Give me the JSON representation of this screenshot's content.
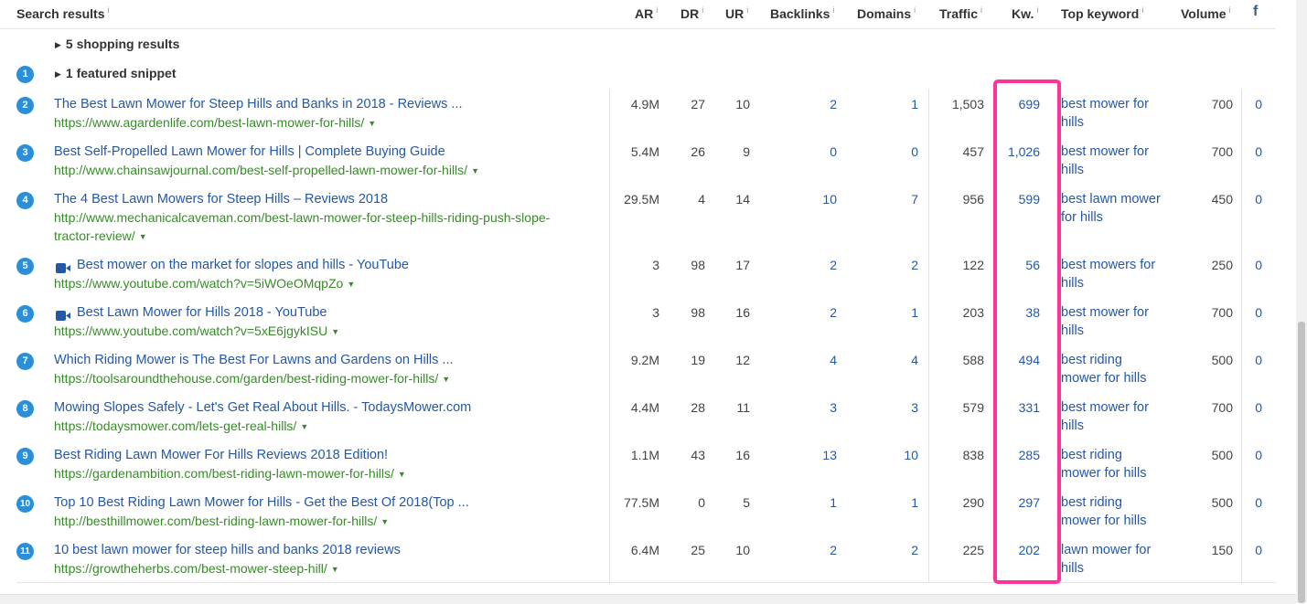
{
  "header": {
    "search_results": "Search results",
    "ar": "AR",
    "dr": "DR",
    "ur": "UR",
    "backlinks": "Backlinks",
    "domains": "Domains",
    "traffic": "Traffic",
    "kw": "Kw.",
    "top_keyword": "Top keyword",
    "volume": "Volume",
    "info": "i",
    "facebook": "f"
  },
  "shopping": {
    "label": "5 shopping results"
  },
  "featured": {
    "rank": "1",
    "label": "1 featured snippet"
  },
  "rows": [
    {
      "rank": "2",
      "title": "The Best Lawn Mower for Steep Hills and Banks in 2018 - Reviews ...",
      "url": "https://www.agardenlife.com/best-lawn-mower-for-hills/",
      "ar": "4.9M",
      "dr": "27",
      "ur": "10",
      "backlinks": "2",
      "domains": "1",
      "traffic": "1,503",
      "kw": "699",
      "keyword": "best mower for hills",
      "volume": "700",
      "fb": "0",
      "video": false
    },
    {
      "rank": "3",
      "title": "Best Self-Propelled Lawn Mower for Hills | Complete Buying Guide",
      "url": "http://www.chainsawjournal.com/best-self-propelled-lawn-mower-for-hills/",
      "ar": "5.4M",
      "dr": "26",
      "ur": "9",
      "backlinks": "0",
      "domains": "0",
      "traffic": "457",
      "kw": "1,026",
      "keyword": "best mower for hills",
      "volume": "700",
      "fb": "0",
      "video": false
    },
    {
      "rank": "4",
      "title": "The 4 Best Lawn Mowers for Steep Hills – Reviews 2018",
      "url": "http://www.mechanicalcaveman.com/best-lawn-mower-for-steep-hills-riding-push-slope-tractor-review/",
      "ar": "29.5M",
      "dr": "4",
      "ur": "14",
      "backlinks": "10",
      "domains": "7",
      "traffic": "956",
      "kw": "599",
      "keyword": "best lawn mower for hills",
      "volume": "450",
      "fb": "0",
      "video": false
    },
    {
      "rank": "5",
      "title": "Best mower on the market for slopes and hills - YouTube",
      "url": "https://www.youtube.com/watch?v=5iWOeOMqpZo",
      "ar": "3",
      "dr": "98",
      "ur": "17",
      "backlinks": "2",
      "domains": "2",
      "traffic": "122",
      "kw": "56",
      "keyword": "best mowers for hills",
      "volume": "250",
      "fb": "0",
      "video": true
    },
    {
      "rank": "6",
      "title": "Best Lawn Mower for Hills 2018 - YouTube",
      "url": "https://www.youtube.com/watch?v=5xE6jgykISU",
      "ar": "3",
      "dr": "98",
      "ur": "16",
      "backlinks": "2",
      "domains": "1",
      "traffic": "203",
      "kw": "38",
      "keyword": "best mower for hills",
      "volume": "700",
      "fb": "0",
      "video": true
    },
    {
      "rank": "7",
      "title": "Which Riding Mower is The Best For Lawns and Gardens on Hills ...",
      "url": "https://toolsaroundthehouse.com/garden/best-riding-mower-for-hills/",
      "ar": "9.2M",
      "dr": "19",
      "ur": "12",
      "backlinks": "4",
      "domains": "4",
      "traffic": "588",
      "kw": "494",
      "keyword": "best riding mower for hills",
      "volume": "500",
      "fb": "0",
      "video": false
    },
    {
      "rank": "8",
      "title": "Mowing Slopes Safely - Let's Get Real About Hills. - TodaysMower.com",
      "url": "https://todaysmower.com/lets-get-real-hills/",
      "ar": "4.4M",
      "dr": "28",
      "ur": "11",
      "backlinks": "3",
      "domains": "3",
      "traffic": "579",
      "kw": "331",
      "keyword": "best mower for hills",
      "volume": "700",
      "fb": "0",
      "video": false
    },
    {
      "rank": "9",
      "title": "Best Riding Lawn Mower For Hills Reviews 2018 Edition!",
      "url": "https://gardenambition.com/best-riding-lawn-mower-for-hills/",
      "ar": "1.1M",
      "dr": "43",
      "ur": "16",
      "backlinks": "13",
      "domains": "10",
      "traffic": "838",
      "kw": "285",
      "keyword": "best riding mower for hills",
      "volume": "500",
      "fb": "0",
      "video": false
    },
    {
      "rank": "10",
      "title": "Top 10 Best Riding Lawn Mower for Hills - Get the Best Of 2018(Top ...",
      "url": "http://besthillmower.com/best-riding-lawn-mower-for-hills/",
      "ar": "77.5M",
      "dr": "0",
      "ur": "5",
      "backlinks": "1",
      "domains": "1",
      "traffic": "290",
      "kw": "297",
      "keyword": "best riding mower for hills",
      "volume": "500",
      "fb": "0",
      "video": false
    },
    {
      "rank": "11",
      "title": "10 best lawn mower for steep hills and banks 2018 reviews",
      "url": "https://growtheherbs.com/best-mower-steep-hill/",
      "ar": "6.4M",
      "dr": "25",
      "ur": "10",
      "backlinks": "2",
      "domains": "2",
      "traffic": "225",
      "kw": "202",
      "keyword": "lawn mower for hills",
      "volume": "150",
      "fb": "0",
      "video": false
    }
  ],
  "colors": {
    "link": "#2458a6",
    "url": "#3a8a2c",
    "badge": "#2a8fd8",
    "highlight": "#ff3399"
  }
}
